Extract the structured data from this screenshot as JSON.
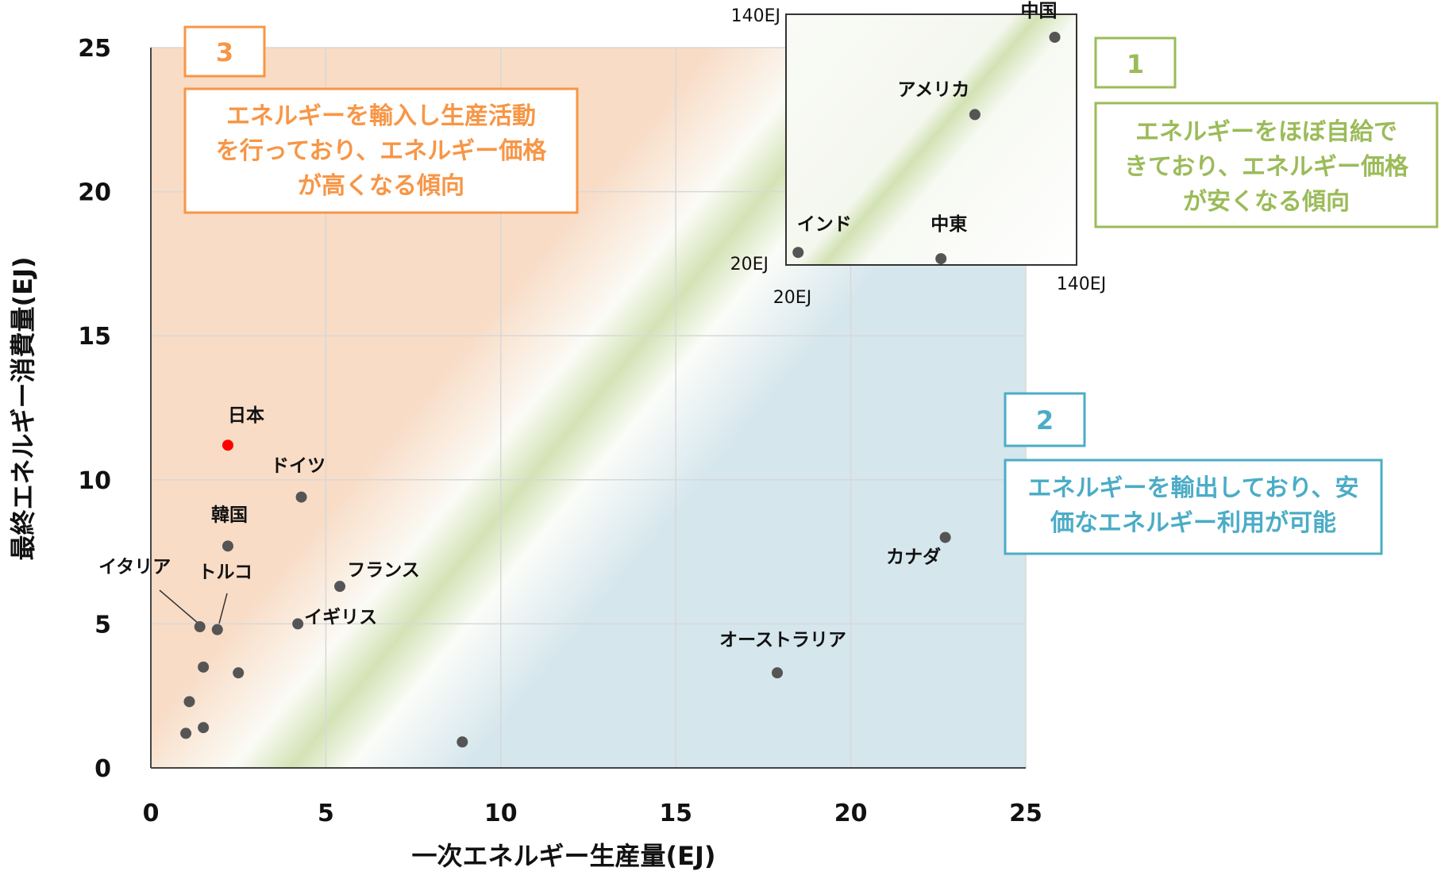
{
  "chart_data": {
    "type": "scatter",
    "xlabel": "一次エネルギー生産量(EJ)",
    "ylabel": "最終エネルギー消費量(EJ)",
    "xlim": [
      0,
      25
    ],
    "ylim": [
      0,
      25
    ],
    "x_ticks": [
      "0",
      "5",
      "10",
      "15",
      "20",
      "25"
    ],
    "y_ticks": [
      "0",
      "5",
      "10",
      "15",
      "20",
      "25"
    ],
    "grid": true,
    "points": [
      {
        "label": "日本",
        "x": 2.2,
        "y": 11.2,
        "color": "#ff0000"
      },
      {
        "label": "ドイツ",
        "x": 4.3,
        "y": 9.4
      },
      {
        "label": "韓国",
        "x": 2.2,
        "y": 7.7
      },
      {
        "label": "イタリア",
        "x": 1.4,
        "y": 4.9
      },
      {
        "label": "トルコ",
        "x": 1.9,
        "y": 4.8
      },
      {
        "label": "フランス",
        "x": 5.4,
        "y": 6.3
      },
      {
        "label": "イギリス",
        "x": 4.2,
        "y": 5.0
      },
      {
        "label": "カナダ",
        "x": 22.7,
        "y": 8.0
      },
      {
        "label": "オーストラリア",
        "x": 17.9,
        "y": 3.3
      },
      {
        "label": "",
        "x": 1.5,
        "y": 3.5
      },
      {
        "label": "",
        "x": 2.5,
        "y": 3.3
      },
      {
        "label": "",
        "x": 1.1,
        "y": 2.3
      },
      {
        "label": "",
        "x": 1.0,
        "y": 1.2
      },
      {
        "label": "",
        "x": 1.5,
        "y": 1.4
      },
      {
        "label": "",
        "x": 8.9,
        "y": 0.9
      }
    ],
    "inset": {
      "corner_label_top": "140EJ",
      "corner_label_left": "20EJ",
      "corner_label_bottom_left": "20EJ",
      "corner_label_right": "140EJ",
      "xlim": [
        20,
        140
      ],
      "ylim": [
        20,
        140
      ],
      "points": [
        {
          "label": "中国",
          "x": 131,
          "y": 129
        },
        {
          "label": "アメリカ",
          "x": 98,
          "y": 92
        },
        {
          "label": "インド",
          "x": 25,
          "y": 26
        },
        {
          "label": "中東",
          "x": 84,
          "y": 23
        }
      ]
    },
    "annotations": [
      {
        "number": "3",
        "text": [
          "エネルギーを輸入し生産活動",
          "を行っており、エネルギー価格",
          "が高くなる傾向"
        ],
        "color": "#f79646"
      },
      {
        "number": "1",
        "text": [
          "エネルギーをほぼ自給で",
          "きており、エネルギー価格",
          "が安くなる傾向"
        ],
        "color": "#9bbb59"
      },
      {
        "number": "2",
        "text": [
          "エネルギーを輸出しており、安",
          "価なエネルギー利用が可能"
        ],
        "color": "#4bacc6"
      }
    ]
  }
}
